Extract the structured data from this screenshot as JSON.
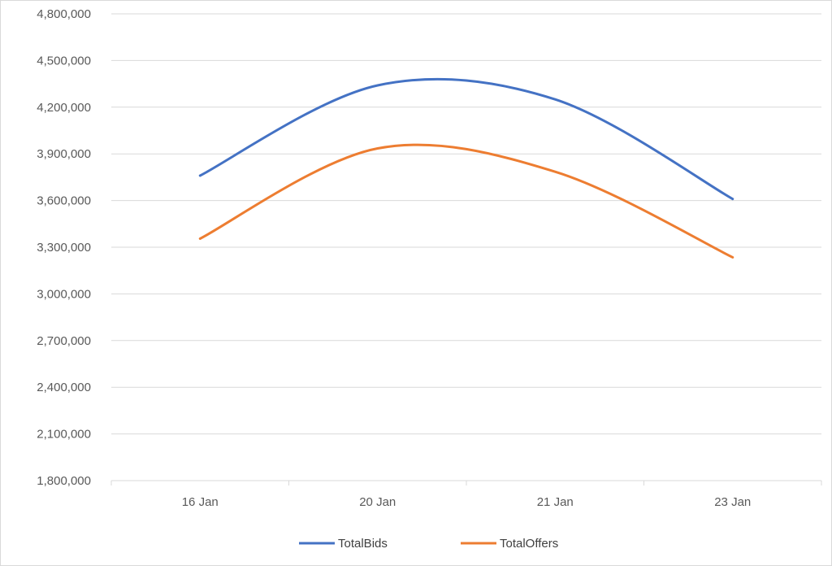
{
  "chart_data": {
    "type": "line",
    "title": "",
    "xlabel": "",
    "ylabel": "",
    "categories": [
      "16 Jan",
      "20 Jan",
      "21 Jan",
      "23 Jan"
    ],
    "series": [
      {
        "name": "TotalBids",
        "values": [
          3760000,
          4340000,
          4250000,
          3610000
        ],
        "color": "#4472c4"
      },
      {
        "name": "TotalOffers",
        "values": [
          3355000,
          3935000,
          3785000,
          3235000
        ],
        "color": "#ed7d31"
      }
    ],
    "ylim": [
      1800000,
      4800000
    ],
    "yticks": [
      1800000,
      2100000,
      2400000,
      2700000,
      3000000,
      3300000,
      3600000,
      3900000,
      4200000,
      4500000,
      4800000
    ],
    "ytick_labels": [
      "1,800,000",
      "2,100,000",
      "2,400,000",
      "2,700,000",
      "3,000,000",
      "3,300,000",
      "3,600,000",
      "3,900,000",
      "4,200,000",
      "4,500,000",
      "4,800,000"
    ],
    "grid": true,
    "smooth": true,
    "legend": "bottom"
  }
}
